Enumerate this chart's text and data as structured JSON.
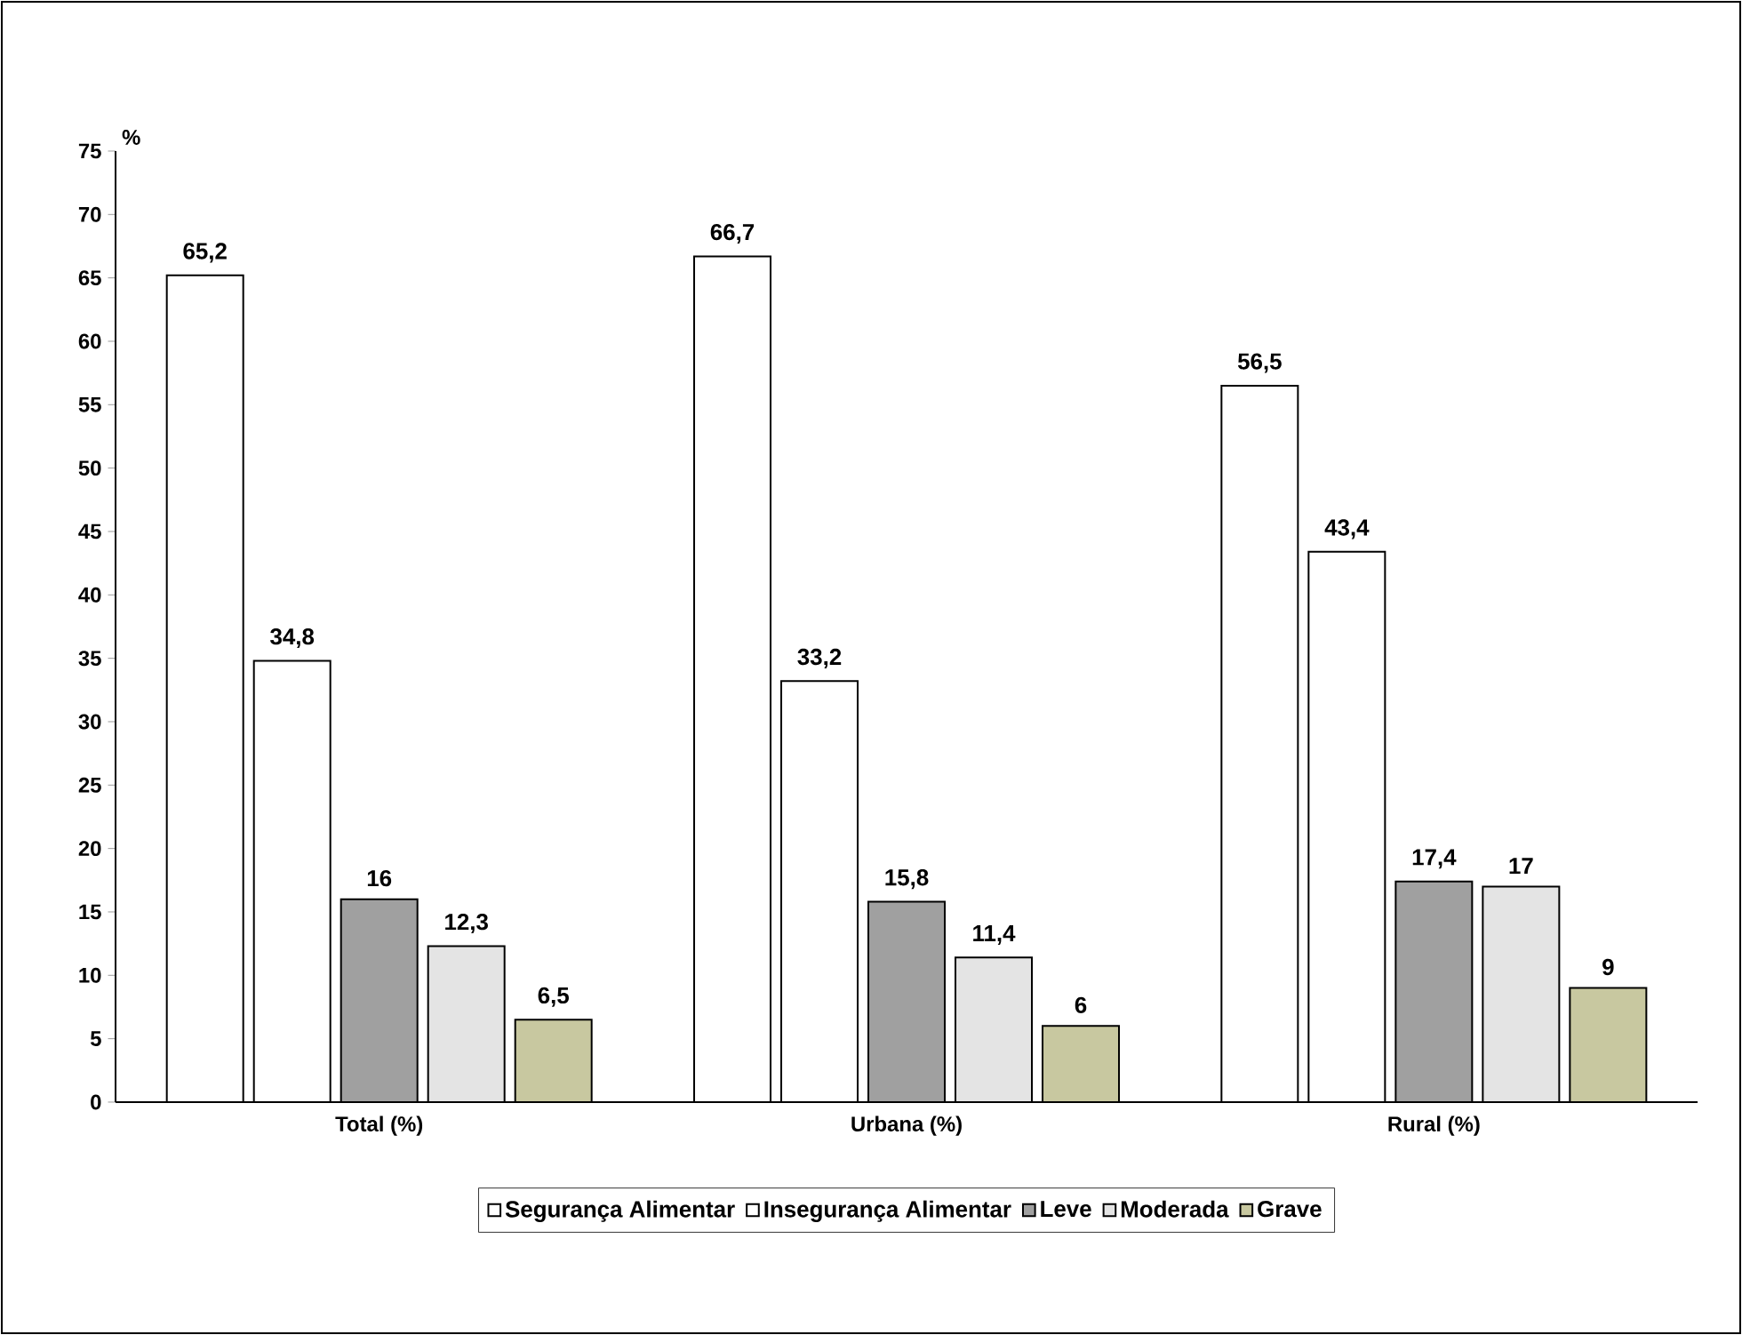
{
  "chart_data": {
    "type": "bar",
    "ylabel": "%",
    "categories": [
      "Total (%)",
      "Urbana (%)",
      "Rural (%)"
    ],
    "series": [
      {
        "name": "Segurança Alimentar",
        "color": "#ffffff",
        "values": [
          65.2,
          66.7,
          56.5
        ],
        "value_labels": [
          "65,2",
          "66,7",
          "56,5"
        ]
      },
      {
        "name": "Insegurança Alimentar",
        "color": "#ffffff",
        "values": [
          34.8,
          33.2,
          43.4
        ],
        "value_labels": [
          "34,8",
          "33,2",
          "43,4"
        ]
      },
      {
        "name": "Leve",
        "color": "#a0a0a0",
        "values": [
          16,
          15.8,
          17.4
        ],
        "value_labels": [
          "16",
          "15,8",
          "17,4"
        ]
      },
      {
        "name": "Moderada",
        "color": "#e4e4e4",
        "values": [
          12.3,
          11.4,
          17
        ],
        "value_labels": [
          "12,3",
          "11,4",
          "17"
        ]
      },
      {
        "name": "Grave",
        "color": "#c8c8a0",
        "values": [
          6.5,
          6,
          9
        ],
        "value_labels": [
          "6,5",
          "6",
          "9"
        ]
      }
    ],
    "ylim": [
      0,
      75
    ],
    "yticks": [
      0,
      5,
      10,
      15,
      20,
      25,
      30,
      35,
      40,
      45,
      50,
      55,
      60,
      65,
      70,
      75
    ],
    "grid": false,
    "legend": "bottom"
  }
}
